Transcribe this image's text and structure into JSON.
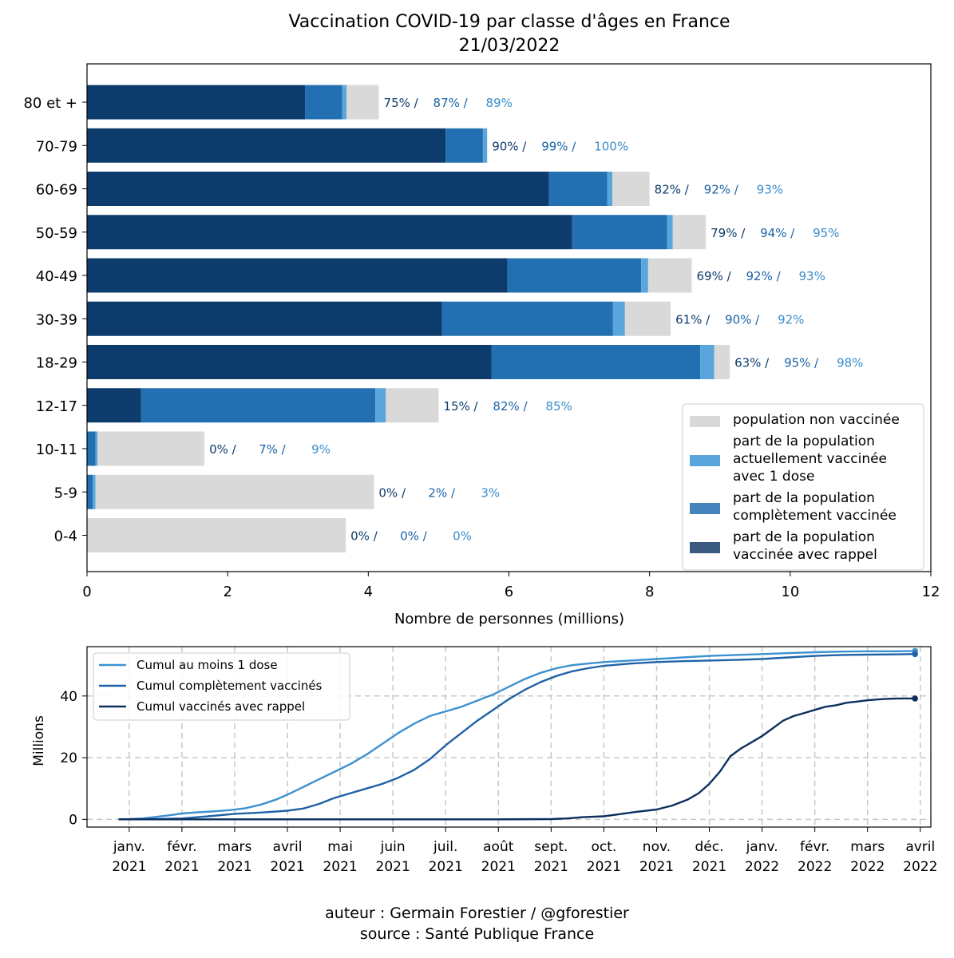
{
  "colors": {
    "non_vaccinee": "#d9d9d9",
    "une_dose": "#5aa5dc",
    "complet": "#2270b2",
    "rappel": "#0d3b6c",
    "legend_une_dose": "#5aa5dc",
    "legend_complet": "#4583bd",
    "legend_rappel": "#3b5a80",
    "pct_rappel": "#0d3b6c",
    "pct_complet": "#1a63a8",
    "pct_une_dose": "#3b8cca",
    "line_une_dose": "#3c91d0",
    "line_complet": "#1f62a6",
    "line_rappel": "#0c2f5e"
  },
  "chart_data": [
    {
      "type": "bar",
      "orientation": "horizontal",
      "stacked": true,
      "title": "Vaccination COVID-19 par classe d'âges en France",
      "subtitle": "21/03/2022",
      "xlabel": "Nombre de personnes (millions)",
      "ylabel": "",
      "xlim": [
        0,
        12
      ],
      "xticks": [
        "0",
        "2",
        "4",
        "6",
        "8",
        "10",
        "12"
      ],
      "categories": [
        "80 et +",
        "70-79",
        "60-69",
        "50-59",
        "40-49",
        "30-39",
        "18-29",
        "12-17",
        "10-11",
        "5-9",
        "0-4"
      ],
      "series": [
        {
          "name": "part de la population vaccinée avec rappel",
          "values": [
            3.1,
            5.1,
            6.57,
            6.9,
            5.98,
            5.05,
            5.75,
            0.77,
            0.0,
            0.0,
            0.0
          ]
        },
        {
          "name": "part de la population complètement vaccinée",
          "values": [
            0.53,
            0.53,
            0.83,
            1.35,
            1.9,
            2.43,
            2.97,
            3.33,
            0.12,
            0.08,
            0.0
          ]
        },
        {
          "name": "part de la population actuellement vaccinée avec 1 dose",
          "values": [
            0.06,
            0.06,
            0.07,
            0.08,
            0.1,
            0.17,
            0.2,
            0.15,
            0.03,
            0.04,
            0.0
          ]
        },
        {
          "name": "population non vaccinée",
          "values": [
            0.46,
            0.0,
            0.53,
            0.47,
            0.62,
            0.65,
            0.22,
            0.75,
            1.52,
            3.96,
            3.68
          ]
        }
      ],
      "labels": {
        "rappel": [
          "75% /",
          "90% /",
          "82% /",
          "79% /",
          "69% /",
          "61% /",
          "63% /",
          "15% /",
          "0% /",
          "0% /",
          "0% /"
        ],
        "complet": [
          "87% /",
          "99% /",
          "92% /",
          "94% /",
          "92% /",
          "90% /",
          "95% /",
          "82% /",
          "7% /",
          "2% /",
          "0% /"
        ],
        "une_dose": [
          "89%",
          "100%",
          "93%",
          "95%",
          "93%",
          "92%",
          "98%",
          "85%",
          "9%",
          "3%",
          "0%"
        ]
      },
      "legend": {
        "position": "lower-right",
        "entries": [
          {
            "key": "non_vaccinee",
            "lines": [
              "population non vaccinée"
            ]
          },
          {
            "key": "legend_une_dose",
            "lines": [
              "part de la population",
              "actuellement vaccinée",
              "avec 1 dose"
            ]
          },
          {
            "key": "legend_complet",
            "lines": [
              "part de la population",
              "complètement vaccinée"
            ]
          },
          {
            "key": "legend_rappel",
            "lines": [
              "part de la population",
              "vaccinée avec rappel"
            ]
          }
        ]
      }
    },
    {
      "type": "line",
      "ylabel": "Millions",
      "xlabel": "",
      "ylim": [
        -2.5,
        56
      ],
      "yticks": [
        0,
        20,
        40
      ],
      "x_unit": "months since 2021-01-01",
      "xlim": [
        -0.8,
        15.2
      ],
      "xticks": [
        {
          "pos": 0,
          "month": "janv.",
          "year": "2021"
        },
        {
          "pos": 1,
          "month": "févr.",
          "year": "2021"
        },
        {
          "pos": 2,
          "month": "mars",
          "year": "2021"
        },
        {
          "pos": 3,
          "month": "avril",
          "year": "2021"
        },
        {
          "pos": 4,
          "month": "mai",
          "year": "2021"
        },
        {
          "pos": 5,
          "month": "juin",
          "year": "2021"
        },
        {
          "pos": 6,
          "month": "juil.",
          "year": "2021"
        },
        {
          "pos": 7,
          "month": "août",
          "year": "2021"
        },
        {
          "pos": 8,
          "month": "sept.",
          "year": "2021"
        },
        {
          "pos": 9,
          "month": "oct.",
          "year": "2021"
        },
        {
          "pos": 10,
          "month": "nov.",
          "year": "2021"
        },
        {
          "pos": 11,
          "month": "déc.",
          "year": "2021"
        },
        {
          "pos": 12,
          "month": "janv.",
          "year": "2022"
        },
        {
          "pos": 13,
          "month": "févr.",
          "year": "2022"
        },
        {
          "pos": 14,
          "month": "mars",
          "year": "2022"
        },
        {
          "pos": 15,
          "month": "avril",
          "year": "2022"
        }
      ],
      "grid": true,
      "legend": {
        "position": "top-left"
      },
      "series": [
        {
          "name": "Cumul au moins 1 dose",
          "key": "line_une_dose",
          "x": [
            -0.2,
            0.0,
            0.25,
            0.5,
            0.75,
            1.0,
            1.3,
            1.6,
            1.9,
            2.2,
            2.5,
            2.8,
            3.0,
            3.3,
            3.6,
            3.9,
            4.2,
            4.5,
            4.8,
            5.1,
            5.4,
            5.7,
            6.0,
            6.3,
            6.6,
            6.9,
            7.2,
            7.5,
            7.8,
            8.1,
            8.4,
            8.7,
            9.0,
            9.5,
            10.0,
            10.5,
            11.0,
            11.5,
            12.0,
            12.5,
            13.0,
            13.5,
            14.0,
            14.5,
            14.9
          ],
          "y": [
            0,
            0.1,
            0.3,
            0.8,
            1.3,
            1.9,
            2.3,
            2.6,
            3.0,
            3.6,
            4.8,
            6.5,
            8.0,
            10.5,
            13.0,
            15.5,
            18.0,
            21.0,
            24.5,
            28.0,
            31.0,
            33.5,
            35.0,
            36.5,
            38.5,
            40.5,
            43.0,
            45.5,
            47.5,
            49.0,
            50.0,
            50.5,
            51.0,
            51.5,
            52.0,
            52.5,
            53.0,
            53.3,
            53.6,
            53.9,
            54.2,
            54.4,
            54.5,
            54.5,
            54.6
          ]
        },
        {
          "name": "Cumul complètement vaccinés",
          "key": "line_complet",
          "x": [
            -0.2,
            0.0,
            0.5,
            1.0,
            1.5,
            2.0,
            2.5,
            3.0,
            3.3,
            3.6,
            3.9,
            4.2,
            4.5,
            4.8,
            5.1,
            5.4,
            5.7,
            6.0,
            6.3,
            6.6,
            6.9,
            7.2,
            7.5,
            7.8,
            8.1,
            8.4,
            8.7,
            9.0,
            9.5,
            10.0,
            10.5,
            11.0,
            11.5,
            12.0,
            12.5,
            13.0,
            13.5,
            14.0,
            14.5,
            14.9
          ],
          "y": [
            0,
            0,
            0.1,
            0.3,
            1.0,
            1.8,
            2.2,
            2.8,
            3.5,
            5.0,
            7.0,
            8.5,
            10.0,
            11.5,
            13.5,
            16.0,
            19.5,
            24.0,
            28.0,
            32.0,
            35.5,
            39.0,
            42.0,
            44.5,
            46.5,
            48.0,
            49.0,
            49.8,
            50.5,
            51.0,
            51.3,
            51.5,
            51.7,
            52.0,
            52.5,
            53.0,
            53.3,
            53.4,
            53.5,
            53.6
          ]
        },
        {
          "name": "Cumul vaccinés avec rappel",
          "key": "line_rappel",
          "x": [
            -0.2,
            0.0,
            1.0,
            2.0,
            3.0,
            4.0,
            5.0,
            6.0,
            7.0,
            8.0,
            8.3,
            8.6,
            9.0,
            9.3,
            9.6,
            10.0,
            10.3,
            10.6,
            10.8,
            11.0,
            11.2,
            11.4,
            11.6,
            11.8,
            12.0,
            12.2,
            12.4,
            12.6,
            12.8,
            13.0,
            13.2,
            13.4,
            13.6,
            13.8,
            14.0,
            14.2,
            14.4,
            14.6,
            14.9
          ],
          "y": [
            0,
            0,
            0,
            0,
            0,
            0,
            0,
            0,
            0,
            0.1,
            0.3,
            0.7,
            1.0,
            1.7,
            2.4,
            3.2,
            4.5,
            6.5,
            8.5,
            11.5,
            15.5,
            20.5,
            23.0,
            25.0,
            27.0,
            29.5,
            32.0,
            33.5,
            34.5,
            35.5,
            36.5,
            37.0,
            37.8,
            38.2,
            38.6,
            38.9,
            39.1,
            39.2,
            39.2
          ]
        }
      ]
    }
  ],
  "footer": {
    "author": "auteur : Germain Forestier / @gforestier",
    "source": "source : Santé Publique France"
  }
}
